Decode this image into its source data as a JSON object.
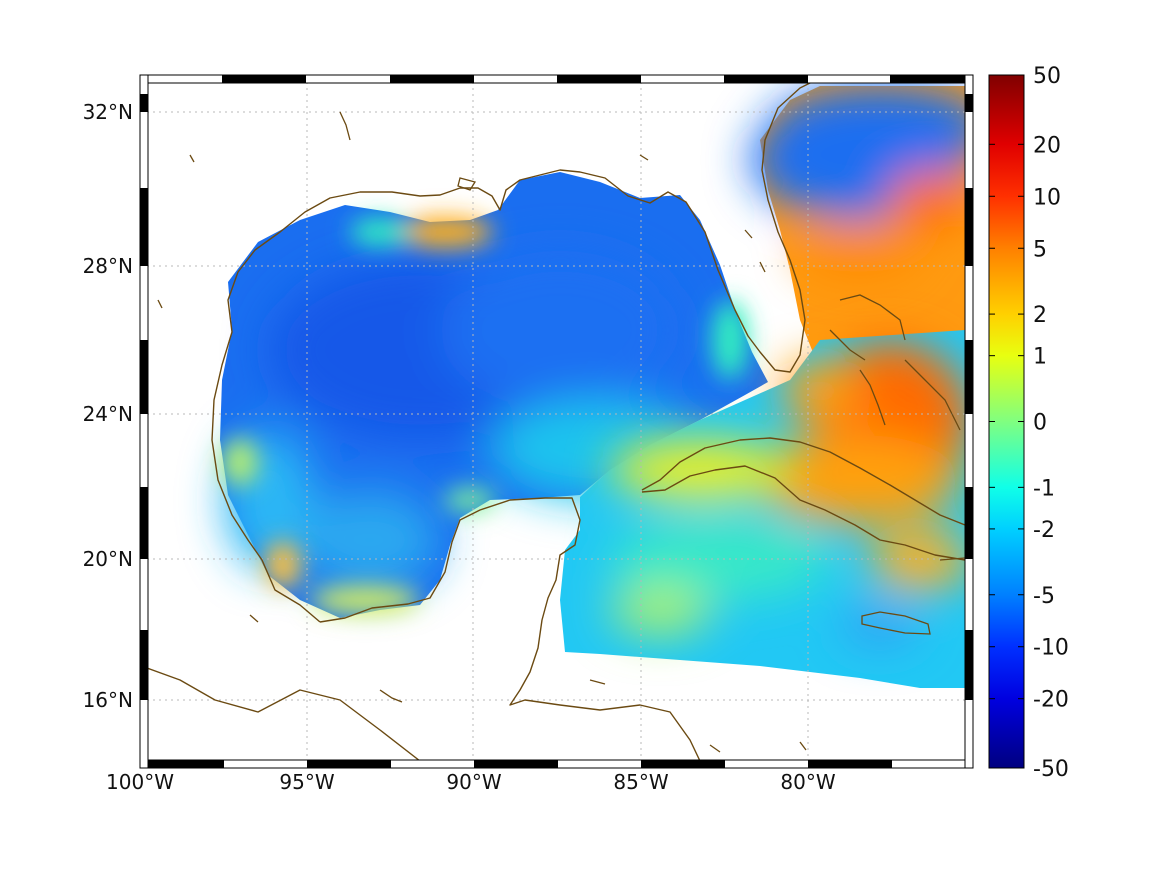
{
  "map": {
    "projection": "Mercator",
    "lon_range": [
      -100,
      -75
    ],
    "lat_range": [
      14.2,
      33
    ],
    "lon_ticks": [
      {
        "value": -100,
        "label": "100°W"
      },
      {
        "value": -95,
        "label": "95°W"
      },
      {
        "value": -90,
        "label": "90°W"
      },
      {
        "value": -85,
        "label": "85°W"
      },
      {
        "value": -80,
        "label": "80°W"
      }
    ],
    "lat_ticks": [
      {
        "value": 32,
        "label": "32°N"
      },
      {
        "value": 28,
        "label": "28°N"
      },
      {
        "value": 24,
        "label": "24°N"
      },
      {
        "value": 20,
        "label": "20°N"
      },
      {
        "value": 16,
        "label": "16°N"
      }
    ],
    "grid": true,
    "frame": "black-white-checkered",
    "coastline_color": "#6b4a12",
    "land_color": "#ffffff"
  },
  "colorbar": {
    "orientation": "vertical",
    "position": "right",
    "scale": "symmetric-log",
    "colormap": "jet",
    "ticks": [
      "50",
      "20",
      "10",
      "5",
      "2",
      "1",
      "0",
      "-1",
      "-2",
      "-5",
      "-10",
      "-20",
      "-50"
    ],
    "tick_fractions": [
      0.0,
      0.1,
      0.175,
      0.25,
      0.345,
      0.405,
      0.5,
      0.595,
      0.655,
      0.75,
      0.825,
      0.9,
      1.0
    ],
    "colors": [
      "#800000",
      "#e00000",
      "#ff3000",
      "#ff8000",
      "#ffd000",
      "#e8ff10",
      "#80ff80",
      "#10ffe8",
      "#00d0ff",
      "#0080ff",
      "#0030ff",
      "#0000e0",
      "#000080"
    ]
  }
}
